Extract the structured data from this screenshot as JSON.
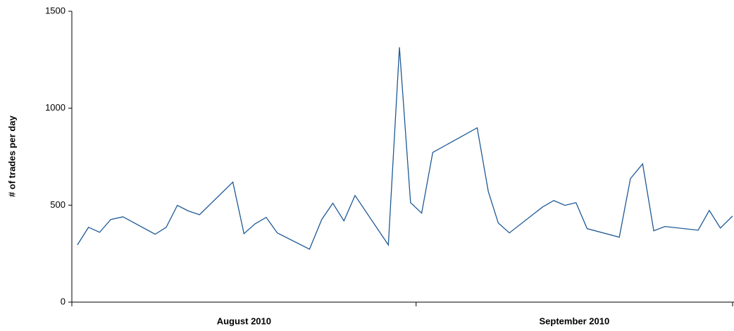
{
  "chart_data": {
    "type": "line",
    "y_label": "# of trades per day",
    "x_bands": [
      {
        "label": "August 2010",
        "from": 0,
        "to": 31
      },
      {
        "label": "September 2010",
        "from": 31,
        "to": 59.5
      }
    ],
    "x": [
      0.5,
      1.5,
      2.5,
      3.5,
      4.6,
      7.5,
      8.5,
      9.5,
      10.5,
      11.5,
      14.5,
      15.5,
      16.5,
      17.5,
      18.5,
      21.4,
      22.5,
      23.5,
      24.5,
      25.5,
      28.5,
      29.5,
      30.5,
      31.5,
      32.5,
      36.5,
      37.5,
      38.4,
      39.4,
      42.4,
      43.4,
      44.4,
      45.4,
      46.4,
      49.3,
      50.3,
      51.4,
      52.4,
      53.4,
      56.4,
      57.4,
      58.4,
      59.5
    ],
    "series": [
      {
        "color": "#1f5a96",
        "values": [
          295,
          386,
          360,
          426,
          440,
          350,
          386,
          499,
          470,
          451,
          619,
          353,
          404,
          437,
          357,
          273,
          426,
          510,
          419,
          550,
          295,
          1314,
          513,
          459,
          772,
          899,
          571,
          408,
          357,
          491,
          524,
          499,
          513,
          379,
          335,
          637,
          713,
          368,
          390,
          371,
          473,
          382,
          444
        ]
      }
    ],
    "xlim": [
      0,
      59.5
    ],
    "xticks": [
      0,
      31,
      59.5
    ],
    "ylim": [
      0,
      1500
    ],
    "yticks": [
      0,
      500,
      1000,
      1500
    ]
  }
}
